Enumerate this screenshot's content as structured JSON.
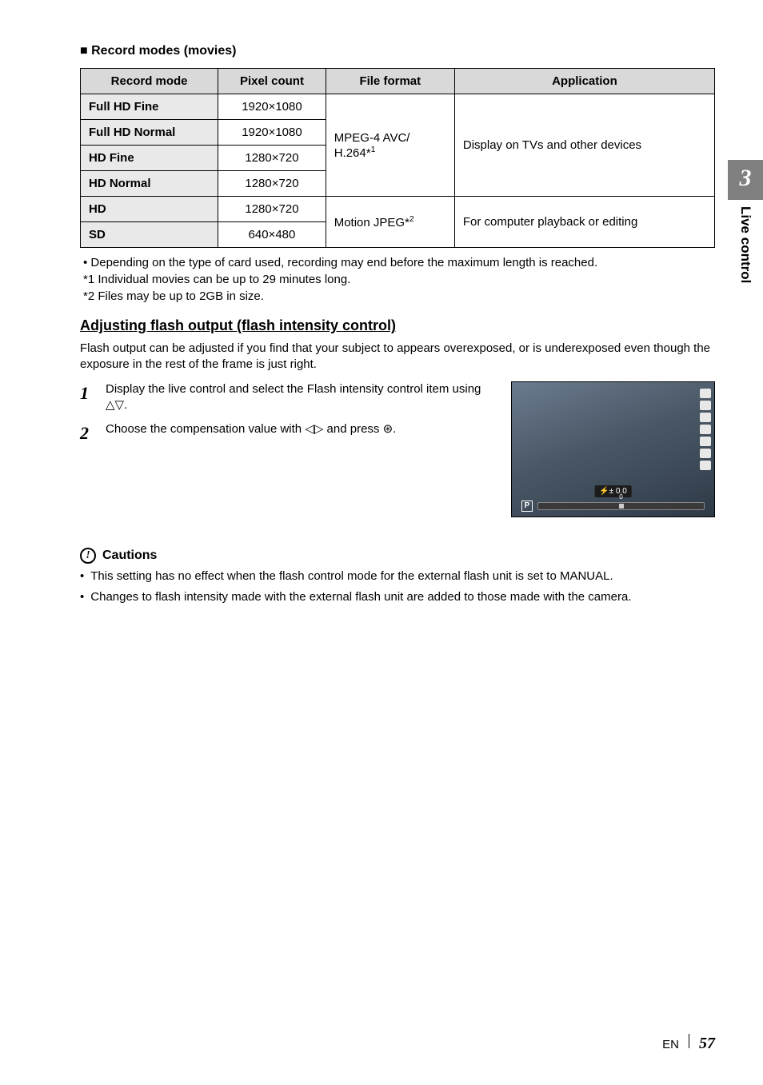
{
  "sidetab": {
    "number": "3",
    "label": "Live control"
  },
  "section_heading": "■ Record modes (movies)",
  "table": {
    "headers": [
      "Record mode",
      "Pixel count",
      "File format",
      "Application"
    ],
    "rows": [
      {
        "mode": "Full HD Fine",
        "pixels": "1920×1080"
      },
      {
        "mode": "Full HD Normal",
        "pixels": "1920×1080"
      },
      {
        "mode": "HD Fine",
        "pixels": "1280×720"
      },
      {
        "mode": "HD Normal",
        "pixels": "1280×720"
      },
      {
        "mode": "HD",
        "pixels": "1280×720"
      },
      {
        "mode": "SD",
        "pixels": "640×480"
      }
    ],
    "format_group1_prefix": "MPEG-4 AVC/",
    "format_group1_suffix": "H.264*",
    "format_group1_sup": "1",
    "format_group2_prefix": "Motion JPEG*",
    "format_group2_sup": "2",
    "app_group1": "Display on TVs and other devices",
    "app_group2": "For computer playback or editing"
  },
  "notes": {
    "n0": "Depending on the type of card used, recording may end before the maximum length is reached.",
    "n1": "*1 Individual movies can be up to 29 minutes long.",
    "n2": "*2 Files may be up to 2GB in size."
  },
  "subheading": "Adjusting flash output (flash intensity control)",
  "intro": "Flash output can be adjusted if you find that your subject to appears overexposed, or is underexposed even though the exposure in the rest of the frame is just right.",
  "steps": {
    "s1": "Display the live control and select the Flash intensity control item using △▽.",
    "s2": "Choose the compensation value with ◁▷ and press ⊛."
  },
  "thumb": {
    "label_prefix": "⚡±",
    "label_value": "0.0",
    "p": "P"
  },
  "cautions": {
    "title": "Cautions",
    "c1": "This setting has no effect when the flash control mode for the external flash unit is set to MANUAL.",
    "c2": "Changes to flash intensity made with the external flash unit are added to those made with the camera."
  },
  "footer": {
    "lang": "EN",
    "page": "57"
  }
}
